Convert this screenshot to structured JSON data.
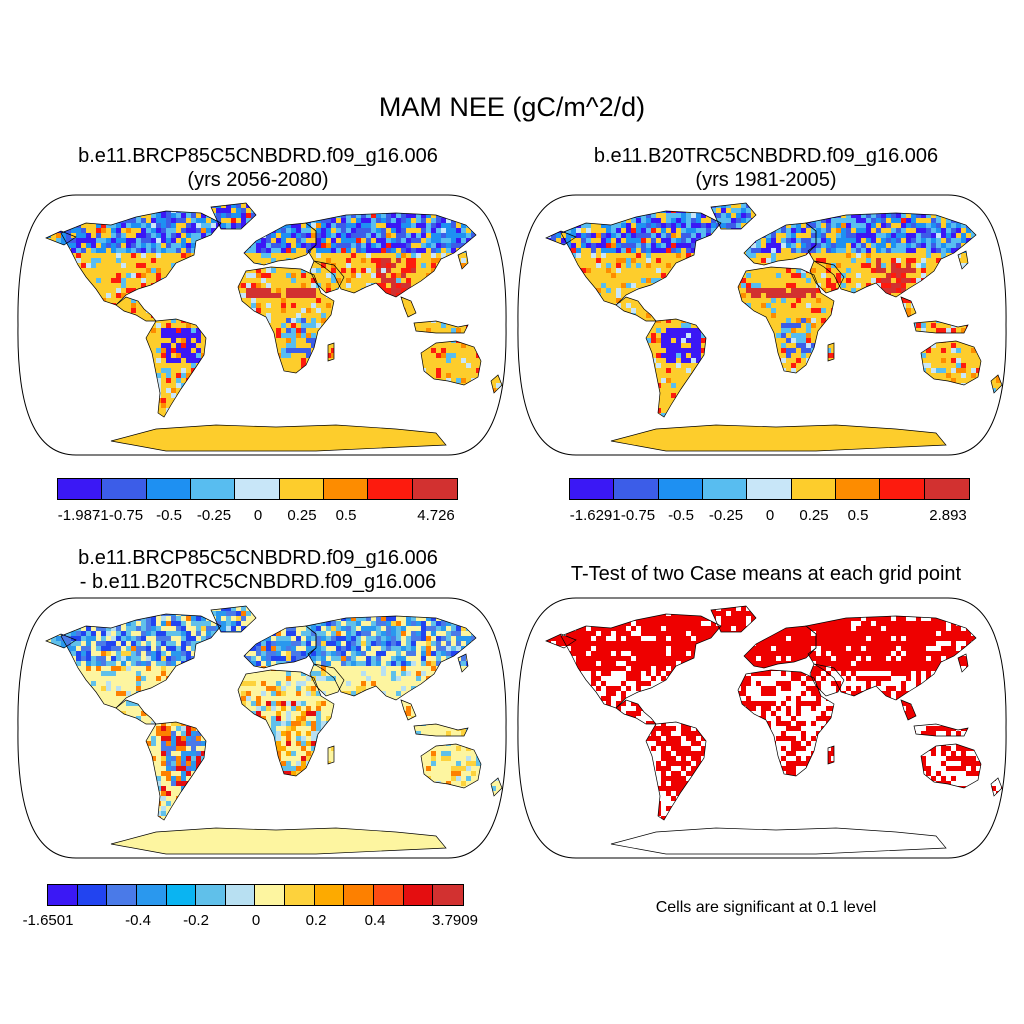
{
  "title": "MAM NEE (gC/m^2/d)",
  "panels": [
    {
      "title1": "b.e11.BRCP85C5CNBDRD.f09_g16.006",
      "title2": "(yrs 2056-2080)",
      "colorbar": {
        "colors": [
          "#3b18f5",
          "#3c5de8",
          "#1e90f2",
          "#58bdf0",
          "#c8e6f8",
          "#fdcd2c",
          "#fd8c00",
          "#fd1b0e",
          "#d23130"
        ],
        "labels": [
          "-1.987",
          "-1",
          "-0.75",
          "-0.5",
          "-0.25",
          "0",
          "0.25",
          "0.5",
          "4.726"
        ]
      }
    },
    {
      "title1": "b.e11.B20TRC5CNBDRD.f09_g16.006",
      "title2": "(yrs 1981-2005)",
      "colorbar": {
        "colors": [
          "#3b18f5",
          "#3c5de8",
          "#1e90f2",
          "#58bdf0",
          "#c8e6f8",
          "#fdcd2c",
          "#fd8c00",
          "#fd1b0e",
          "#d23130"
        ],
        "labels": [
          "-1.629",
          "-1",
          "-0.75",
          "-0.5",
          "-0.25",
          "0",
          "0.25",
          "0.5",
          "2.893"
        ]
      }
    },
    {
      "title1": "b.e11.BRCP85C5CNBDRD.f09_g16.006",
      "title2": "- b.e11.B20TRC5CNBDRD.f09_g16.006",
      "colorbar": {
        "colors": [
          "#3b18f5",
          "#2244f0",
          "#4a7ae8",
          "#2a98ee",
          "#0ab4f2",
          "#60c0ea",
          "#b8e0f2",
          "#fdf5a0",
          "#fdd23c",
          "#fdaa00",
          "#fd8000",
          "#fd4c14",
          "#e40e10",
          "#d23130"
        ],
        "labels": [
          "-1.6501",
          "-0.4",
          "-0.2",
          "0",
          "0.2",
          "0.4",
          "3.7909"
        ]
      }
    },
    {
      "title1": "T-Test of two Case means at each grid point",
      "note": "Cells are significant at 0.1 level",
      "signif_color": "#ee0000"
    }
  ]
}
